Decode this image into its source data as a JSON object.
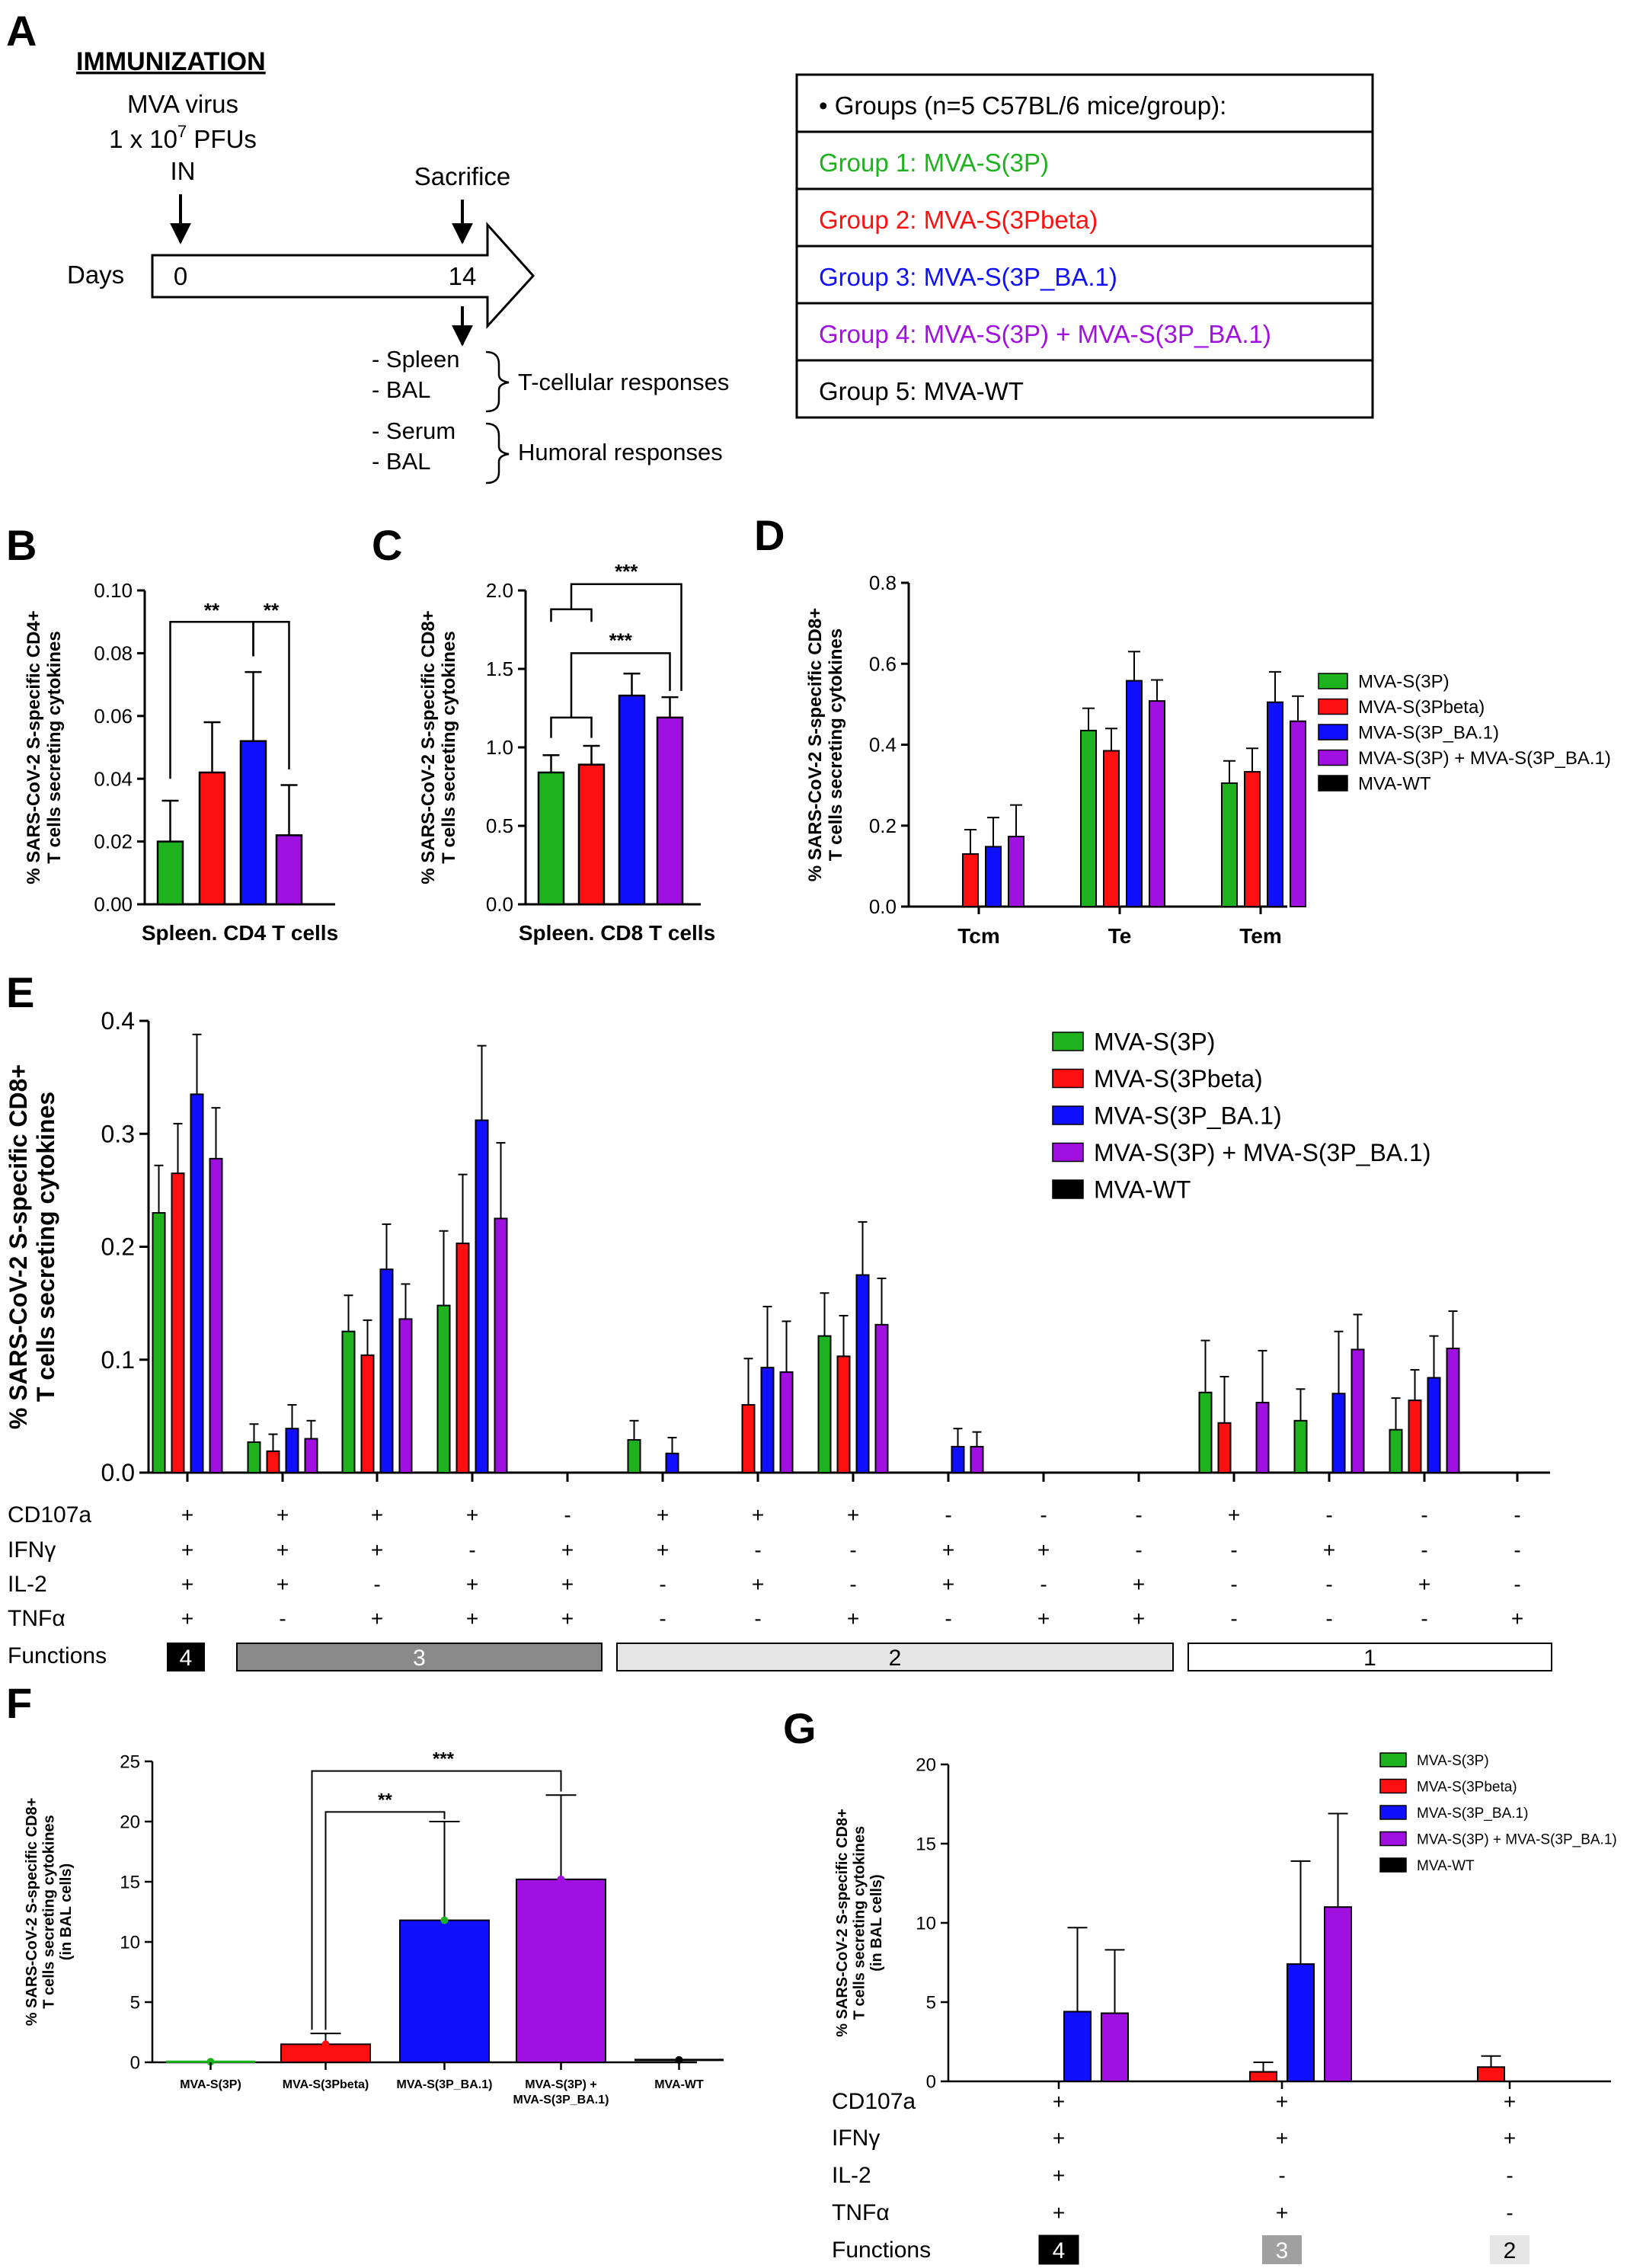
{
  "panel_letters": {
    "a": "A",
    "b": "B",
    "c": "C",
    "d": "D",
    "e": "E",
    "f": "F",
    "g": "G"
  },
  "colors": {
    "green": "#1fb21f",
    "red": "#ff1010",
    "blue": "#1010ff",
    "purple": "#a010e0",
    "black": "#000000",
    "dark_gray": "#8a8a8a",
    "mid_gray": "#a0a0a0",
    "light_gray": "#e6e6e6",
    "white": "#ffffff"
  },
  "panel_a": {
    "immunization_title": "IMMUNIZATION",
    "virus_line": "MVA virus",
    "dose_prefix": "1 x 10",
    "dose_exp": "7",
    "dose_suffix": " PFUs",
    "route": "IN",
    "sacrifice": "Sacrifice",
    "days_label": "Days",
    "day_start": "0",
    "day_end": "14",
    "samples_t": [
      "- Spleen",
      "- BAL"
    ],
    "samples_h": [
      "- Serum",
      "- BAL"
    ],
    "t_label": "T-cellular responses",
    "h_label": "Humoral responses",
    "groups_header": "• Groups (n=5 C57BL/6 mice/group):",
    "groups": [
      {
        "label": "Group 1: MVA-S(3P)",
        "color": "#1fb21f"
      },
      {
        "label": "Group 2: MVA-S(3Pbeta)",
        "color": "#ff1010"
      },
      {
        "label": "Group 3: MVA-S(3P_BA.1)",
        "color": "#1010ff"
      },
      {
        "label": "Group 4: MVA-S(3P) + MVA-S(3P_BA.1)",
        "color": "#a010e0"
      },
      {
        "label": "Group 5: MVA-WT",
        "color": "#000000"
      }
    ]
  },
  "legend_labels": [
    "MVA-S(3P)",
    "MVA-S(3Pbeta)",
    "MVA-S(3P_BA.1)",
    "MVA-S(3P) + MVA-S(3P_BA.1)",
    "MVA-WT"
  ],
  "chart_data": [
    {
      "id": "B",
      "type": "bar",
      "ylabel": [
        "% SARS-CoV-2 S-specific CD4+",
        "T cells secreting cytokines"
      ],
      "xlabel": "Spleen. CD4 T cells",
      "ylim": [
        0,
        0.1
      ],
      "yticks": [
        "0.00",
        "0.02",
        "0.04",
        "0.06",
        "0.08",
        "0.10"
      ],
      "values": [
        0.02,
        0.042,
        0.052,
        0.022
      ],
      "errors": [
        0.013,
        0.016,
        0.022,
        0.016
      ],
      "colors": [
        "#1fb21f",
        "#ff1010",
        "#1010ff",
        "#a010e0"
      ],
      "significance": [
        "**",
        "**"
      ]
    },
    {
      "id": "C",
      "type": "bar",
      "ylabel": [
        "% SARS-CoV-2 S-specific CD8+",
        "T cells secreting cytokines"
      ],
      "xlabel": "Spleen. CD8 T cells",
      "ylim": [
        0,
        2.0
      ],
      "yticks": [
        "0.0",
        "0.5",
        "1.0",
        "1.5",
        "2.0"
      ],
      "values": [
        0.84,
        0.89,
        1.33,
        1.19
      ],
      "errors": [
        0.11,
        0.12,
        0.14,
        0.13
      ],
      "colors": [
        "#1fb21f",
        "#ff1010",
        "#1010ff",
        "#a010e0"
      ],
      "significance": [
        "***",
        "***"
      ]
    },
    {
      "id": "D",
      "type": "bar",
      "ylabel": [
        "% SARS-CoV-2 S-specific CD8+",
        "T cells secreting cytokines"
      ],
      "ylim": [
        0,
        0.8
      ],
      "yticks": [
        "0.0",
        "0.2",
        "0.4",
        "0.6",
        "0.8"
      ],
      "categories": [
        "Tcm",
        "Te",
        "Tem"
      ],
      "series": [
        {
          "name": "MVA-S(3P)",
          "values": [
            0.0,
            0.435,
            0.305
          ],
          "errors": [
            0,
            0.055,
            0.055
          ]
        },
        {
          "name": "MVA-S(3Pbeta)",
          "values": [
            0.13,
            0.385,
            0.333
          ],
          "errors": [
            0.06,
            0.055,
            0.058
          ]
        },
        {
          "name": "MVA-S(3P_BA.1)",
          "values": [
            0.148,
            0.558,
            0.505
          ],
          "errors": [
            0.072,
            0.072,
            0.075
          ]
        },
        {
          "name": "MVA-S(3P) + MVA-S(3P_BA.1)",
          "values": [
            0.173,
            0.508,
            0.458
          ],
          "errors": [
            0.078,
            0.052,
            0.062
          ]
        },
        {
          "name": "MVA-WT",
          "values": [
            0,
            0,
            0
          ],
          "errors": [
            0,
            0,
            0
          ]
        }
      ]
    },
    {
      "id": "E",
      "type": "bar",
      "ylabel": [
        "% SARS-CoV-2 S-specific CD8+",
        "T cells secreting cytokines"
      ],
      "ylim": [
        0,
        0.4
      ],
      "yticks": [
        "0.0",
        "0.1",
        "0.2",
        "0.3",
        "0.4"
      ],
      "row_labels": [
        "CD107a",
        "IFNγ",
        "IL-2",
        "TNFα"
      ],
      "functions_label": "Functions",
      "combos": [
        [
          "+",
          "+",
          "+",
          "+"
        ],
        [
          "+",
          "+",
          "+",
          "-"
        ],
        [
          "+",
          "+",
          "-",
          "+"
        ],
        [
          "+",
          "-",
          "+",
          "+"
        ],
        [
          "-",
          "+",
          "+",
          "+"
        ],
        [
          "+",
          "+",
          "-",
          "-"
        ],
        [
          "+",
          "-",
          "+",
          "-"
        ],
        [
          "+",
          "-",
          "-",
          "+"
        ],
        [
          "-",
          "+",
          "+",
          "-"
        ],
        [
          "-",
          "+",
          "-",
          "+"
        ],
        [
          "-",
          "-",
          "+",
          "+"
        ],
        [
          "+",
          "-",
          "-",
          "-"
        ],
        [
          "-",
          "+",
          "-",
          "-"
        ],
        [
          "-",
          "-",
          "+",
          "-"
        ],
        [
          "-",
          "-",
          "-",
          "+"
        ]
      ],
      "function_groups": [
        {
          "label": "4",
          "start": 0,
          "end": 0,
          "fill": "#000000",
          "text": "#ffffff"
        },
        {
          "label": "3",
          "start": 1,
          "end": 4,
          "fill": "#8a8a8a",
          "text": "#ffffff"
        },
        {
          "label": "2",
          "start": 5,
          "end": 10,
          "fill": "#e6e6e6",
          "text": "#000000"
        },
        {
          "label": "1",
          "start": 11,
          "end": 14,
          "fill": "#ffffff",
          "text": "#000000"
        }
      ],
      "series": [
        {
          "name": "MVA-S(3P)",
          "values": [
            0.23,
            0.027,
            0.125,
            0.148,
            0,
            0.029,
            0,
            0.121,
            0,
            0,
            0,
            0.071,
            0.046,
            0.038,
            0
          ],
          "errors": [
            0.042,
            0.016,
            0.032,
            0.066,
            0,
            0.017,
            0,
            0.038,
            0,
            0,
            0,
            0.046,
            0.028,
            0.028,
            0
          ]
        },
        {
          "name": "MVA-S(3Pbeta)",
          "values": [
            0.265,
            0.019,
            0.104,
            0.203,
            0,
            0,
            0.06,
            0.103,
            0,
            0,
            0,
            0.044,
            0,
            0.064,
            0
          ],
          "errors": [
            0.044,
            0.015,
            0.031,
            0.061,
            0,
            0,
            0.041,
            0.036,
            0,
            0,
            0,
            0.041,
            0,
            0.027,
            0
          ]
        },
        {
          "name": "MVA-S(3P_BA.1)",
          "values": [
            0.335,
            0.039,
            0.18,
            0.312,
            0,
            0.017,
            0.093,
            0.175,
            0.023,
            0,
            0,
            0,
            0.07,
            0.084,
            0
          ],
          "errors": [
            0.053,
            0.021,
            0.04,
            0.066,
            0,
            0.014,
            0.054,
            0.047,
            0.016,
            0,
            0,
            0,
            0.055,
            0.037,
            0
          ]
        },
        {
          "name": "MVA-S(3P) + MVA-S(3P_BA.1)",
          "values": [
            0.278,
            0.03,
            0.136,
            0.225,
            0,
            0,
            0.089,
            0.131,
            0.023,
            0,
            0,
            0.062,
            0.109,
            0.11,
            0
          ],
          "errors": [
            0.045,
            0.016,
            0.031,
            0.067,
            0,
            0,
            0.045,
            0.041,
            0.013,
            0,
            0,
            0.046,
            0.031,
            0.033,
            0
          ]
        },
        {
          "name": "MVA-WT",
          "values": [
            0,
            0,
            0,
            0,
            0,
            0,
            0,
            0,
            0,
            0,
            0,
            0,
            0,
            0,
            0
          ],
          "errors": [
            0,
            0,
            0,
            0,
            0,
            0,
            0,
            0,
            0,
            0,
            0,
            0,
            0,
            0,
            0
          ]
        }
      ]
    },
    {
      "id": "F",
      "type": "bar",
      "ylabel": [
        "% SARS-CoV-2 S-specific CD8+",
        "T cells secreting cytokines",
        "(in BAL cells)"
      ],
      "ylim": [
        0,
        25
      ],
      "yticks": [
        "0",
        "5",
        "10",
        "15",
        "20",
        "25"
      ],
      "categories": [
        [
          "MVA-S(3P)"
        ],
        [
          "MVA-S(3Pbeta)"
        ],
        [
          "MVA-S(3P_BA.1)"
        ],
        [
          "MVA-S(3P) +",
          "MVA-S(3P_BA.1)"
        ],
        [
          "MVA-WT"
        ]
      ],
      "values": [
        0.05,
        1.5,
        11.8,
        15.2,
        0.2
      ],
      "errors": [
        0,
        0.9,
        8.2,
        7.0,
        0
      ],
      "colors": [
        "#1fb21f",
        "#ff1010",
        "#1010ff",
        "#a010e0",
        "#000000"
      ],
      "significance": [
        "**",
        "***"
      ]
    },
    {
      "id": "G",
      "type": "bar",
      "ylabel": [
        "% SARS-CoV-2 S-specific CD8+",
        "T cells secreting cytokines",
        "(in BAL cells)"
      ],
      "ylim": [
        0,
        20
      ],
      "yticks": [
        "0",
        "5",
        "10",
        "15",
        "20"
      ],
      "row_labels": [
        "CD107a",
        "IFNγ",
        "IL-2",
        "TNFα"
      ],
      "functions_label": "Functions",
      "combos": [
        [
          "+",
          "+",
          "+",
          "+"
        ],
        [
          "+",
          "+",
          "-",
          "+"
        ],
        [
          "+",
          "+",
          "-",
          "-"
        ]
      ],
      "function_boxes": [
        {
          "label": "4",
          "fill": "#000000",
          "text": "#ffffff"
        },
        {
          "label": "3",
          "fill": "#a0a0a0",
          "text": "#ffffff"
        },
        {
          "label": "2",
          "fill": "#e6e6e6",
          "text": "#000000"
        }
      ],
      "series": [
        {
          "name": "MVA-S(3P)",
          "values": [
            0,
            0,
            0
          ],
          "errors": [
            0,
            0,
            0
          ]
        },
        {
          "name": "MVA-S(3Pbeta)",
          "values": [
            0,
            0.6,
            0.9
          ],
          "errors": [
            0,
            0.6,
            0.7
          ]
        },
        {
          "name": "MVA-S(3P_BA.1)",
          "values": [
            4.4,
            7.4,
            0
          ],
          "errors": [
            5.3,
            6.5,
            0
          ]
        },
        {
          "name": "MVA-S(3P) + MVA-S(3P_BA.1)",
          "values": [
            4.3,
            11.0,
            0
          ],
          "errors": [
            4.0,
            5.9,
            0
          ]
        },
        {
          "name": "MVA-WT",
          "values": [
            0,
            0,
            0
          ],
          "errors": [
            0,
            0,
            0
          ]
        }
      ]
    }
  ]
}
